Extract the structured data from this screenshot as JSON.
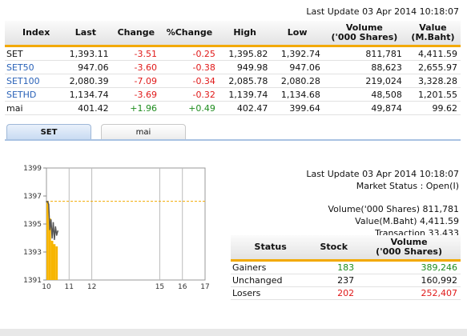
{
  "last_update": "Last Update 03 Apr 2014 10:18:07",
  "market_table": {
    "headers": [
      "Index",
      "Last",
      "Change",
      "%Change",
      "High",
      "Low",
      "Volume\n('000 Shares)",
      "Value\n(M.Baht)"
    ],
    "rows": [
      {
        "index": "SET",
        "last": "1,393.11",
        "change": "-3.51",
        "pct": "-0.25",
        "high": "1,395.82",
        "low": "1,392.74",
        "volume": "811,781",
        "value": "4,411.59",
        "link": false,
        "dir": "neg"
      },
      {
        "index": "SET50",
        "last": "947.06",
        "change": "-3.60",
        "pct": "-0.38",
        "high": "949.98",
        "low": "947.06",
        "volume": "88,623",
        "value": "2,655.97",
        "link": true,
        "dir": "neg"
      },
      {
        "index": "SET100",
        "last": "2,080.39",
        "change": "-7.09",
        "pct": "-0.34",
        "high": "2,085.78",
        "low": "2,080.28",
        "volume": "219,024",
        "value": "3,328.28",
        "link": true,
        "dir": "neg"
      },
      {
        "index": "SETHD",
        "last": "1,134.74",
        "change": "-3.69",
        "pct": "-0.32",
        "high": "1,139.74",
        "low": "1,134.68",
        "volume": "48,508",
        "value": "1,201.55",
        "link": true,
        "dir": "neg"
      },
      {
        "index": "mai",
        "last": "401.42",
        "change": "+1.96",
        "pct": "+0.49",
        "high": "402.47",
        "low": "399.64",
        "volume": "49,874",
        "value": "99.62",
        "link": false,
        "dir": "pos"
      }
    ]
  },
  "tabs": [
    {
      "label": "SET"
    },
    {
      "label": "mai"
    }
  ],
  "market_info": {
    "last_update": "Last Update 03 Apr 2014 10:18:07",
    "status": "Market Status : Open(I)",
    "volume": "Volume('000 Shares) 811,781",
    "value": "Value(M.Baht) 4,411.59",
    "transaction": "Transaction 33,433"
  },
  "stat_table": {
    "headers": [
      "Status",
      "Stock",
      "Volume\n('000 Shares)"
    ],
    "rows": [
      {
        "status": "Gainers",
        "stock": "183",
        "volume": "389,246",
        "dir": "pos"
      },
      {
        "status": "Unchanged",
        "stock": "237",
        "volume": "160,992",
        "dir": ""
      },
      {
        "status": "Losers",
        "stock": "202",
        "volume": "252,407",
        "dir": "neg"
      }
    ]
  },
  "chart_data": {
    "type": "line",
    "y_ticks": [
      "1399",
      "1397",
      "1395",
      "1393",
      "1391"
    ],
    "x_ticks": [
      "10",
      "11",
      "12",
      "15",
      "16",
      "17"
    ],
    "ylim": [
      1391,
      1399
    ],
    "xlim": [
      10,
      17
    ],
    "reference_level": 1396.62,
    "series": [
      {
        "x": [
          10.0,
          10.05,
          10.1,
          10.15,
          10.2,
          10.25,
          10.3,
          10.35,
          10.4,
          10.45,
          10.5
        ],
        "y": [
          1396.6,
          1396.6,
          1396.4,
          1394.6,
          1395.3,
          1394.0,
          1395.1,
          1393.9,
          1394.8,
          1394.2,
          1394.5
        ]
      }
    ],
    "volume_bars": {
      "x": [
        10.0,
        10.1,
        10.2,
        10.3,
        10.4
      ],
      "height_fraction": [
        0.7,
        0.55,
        0.35,
        0.32,
        0.3
      ]
    },
    "colors": {
      "line": "#555555",
      "volume": "#f7b500",
      "reference": "#f2a900"
    }
  }
}
